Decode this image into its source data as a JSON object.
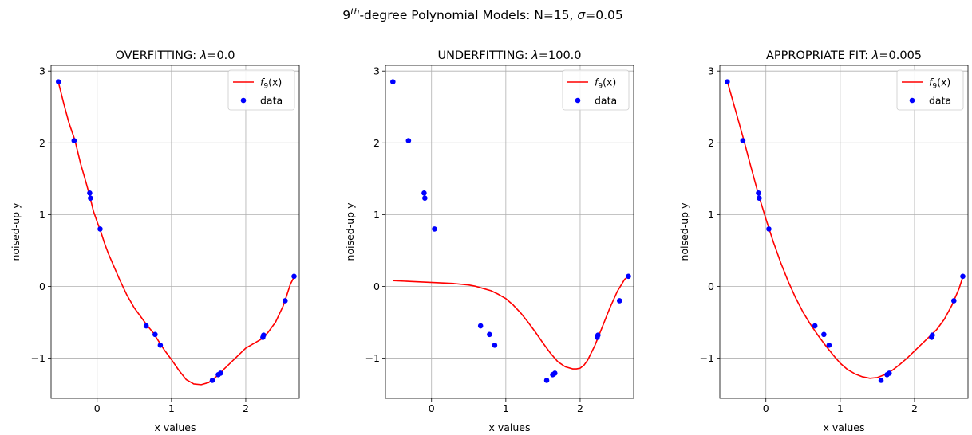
{
  "figure": {
    "suptitle_parts": [
      "9",
      "th",
      "-degree Polynomial Models: N=15, ",
      "σ",
      "=0.05"
    ]
  },
  "chart_data": [
    {
      "type": "scatter",
      "title_parts": [
        "OVERFITTING: ",
        "λ",
        "=0.0"
      ],
      "xlabel": "x values",
      "ylabel": "noised-up y",
      "xlim": [
        -0.62,
        2.72
      ],
      "ylim": [
        -1.56,
        3.08
      ],
      "xticks": [
        0,
        1,
        2
      ],
      "yticks": [
        -1,
        0,
        1,
        2,
        3
      ],
      "grid": true,
      "legend_position": "top-right",
      "series": [
        {
          "name": "f9(x)",
          "legend_parts": [
            "f",
            "9",
            "(x)"
          ],
          "type": "line",
          "color": "#ff0000",
          "x": [
            -0.52,
            -0.45,
            -0.38,
            -0.3,
            -0.22,
            -0.15,
            -0.1,
            -0.05,
            0.0,
            0.05,
            0.1,
            0.15,
            0.2,
            0.3,
            0.4,
            0.5,
            0.6,
            0.67,
            0.75,
            0.8,
            0.85,
            0.9,
            1.0,
            1.1,
            1.2,
            1.3,
            1.4,
            1.5,
            1.55,
            1.6,
            1.65,
            1.7,
            1.8,
            1.9,
            2.0,
            2.1,
            2.2,
            2.25,
            2.3,
            2.4,
            2.5,
            2.55,
            2.6,
            2.65
          ],
          "y": [
            2.84,
            2.55,
            2.28,
            2.04,
            1.7,
            1.45,
            1.26,
            1.05,
            0.9,
            0.76,
            0.6,
            0.46,
            0.34,
            0.1,
            -0.12,
            -0.3,
            -0.44,
            -0.54,
            -0.64,
            -0.72,
            -0.8,
            -0.88,
            -1.02,
            -1.17,
            -1.3,
            -1.36,
            -1.37,
            -1.34,
            -1.3,
            -1.26,
            -1.22,
            -1.16,
            -1.06,
            -0.96,
            -0.86,
            -0.8,
            -0.74,
            -0.7,
            -0.64,
            -0.5,
            -0.28,
            -0.13,
            0.03,
            0.13
          ]
        },
        {
          "name": "data",
          "type": "scatter",
          "color": "#0000ff",
          "x": [
            -0.52,
            -0.31,
            -0.1,
            -0.09,
            0.04,
            0.66,
            0.78,
            0.85,
            1.55,
            1.63,
            1.66,
            2.23,
            2.24,
            2.53,
            2.65
          ],
          "y": [
            2.85,
            2.03,
            1.3,
            1.23,
            0.8,
            -0.55,
            -0.67,
            -0.82,
            -1.31,
            -1.23,
            -1.21,
            -0.71,
            -0.68,
            -0.2,
            0.14
          ]
        }
      ]
    },
    {
      "type": "scatter",
      "title_parts": [
        "UNDERFITTING: ",
        "λ",
        "=100.0"
      ],
      "xlabel": "x values",
      "ylabel": "noised-up y",
      "xlim": [
        -0.62,
        2.72
      ],
      "ylim": [
        -1.56,
        3.08
      ],
      "xticks": [
        0,
        1,
        2
      ],
      "yticks": [
        -1,
        0,
        1,
        2,
        3
      ],
      "grid": true,
      "legend_position": "top-right",
      "series": [
        {
          "name": "f9(x)",
          "legend_parts": [
            "f",
            "9",
            "(x)"
          ],
          "type": "line",
          "color": "#ff0000",
          "x": [
            -0.52,
            -0.3,
            -0.1,
            0.1,
            0.3,
            0.5,
            0.6,
            0.7,
            0.8,
            0.9,
            1.0,
            1.1,
            1.2,
            1.3,
            1.4,
            1.5,
            1.6,
            1.7,
            1.8,
            1.9,
            1.95,
            2.0,
            2.05,
            2.1,
            2.2,
            2.3,
            2.4,
            2.5,
            2.6,
            2.65
          ],
          "y": [
            0.08,
            0.07,
            0.06,
            0.05,
            0.04,
            0.02,
            0.0,
            -0.03,
            -0.06,
            -0.11,
            -0.17,
            -0.26,
            -0.37,
            -0.5,
            -0.64,
            -0.79,
            -0.93,
            -1.05,
            -1.12,
            -1.15,
            -1.15,
            -1.14,
            -1.1,
            -1.03,
            -0.82,
            -0.56,
            -0.3,
            -0.07,
            0.1,
            0.14
          ]
        },
        {
          "name": "data",
          "type": "scatter",
          "color": "#0000ff",
          "x": [
            -0.52,
            -0.31,
            -0.1,
            -0.09,
            0.04,
            0.66,
            0.78,
            0.85,
            1.55,
            1.63,
            1.66,
            2.23,
            2.24,
            2.53,
            2.65
          ],
          "y": [
            2.85,
            2.03,
            1.3,
            1.23,
            0.8,
            -0.55,
            -0.67,
            -0.82,
            -1.31,
            -1.23,
            -1.21,
            -0.71,
            -0.68,
            -0.2,
            0.14
          ]
        }
      ]
    },
    {
      "type": "scatter",
      "title_parts": [
        "APPROPRIATE FIT: ",
        "λ",
        "=0.005"
      ],
      "xlabel": "x values",
      "ylabel": "noised-up y",
      "xlim": [
        -0.62,
        2.72
      ],
      "ylim": [
        -1.56,
        3.08
      ],
      "xticks": [
        0,
        1,
        2
      ],
      "yticks": [
        -1,
        0,
        1,
        2,
        3
      ],
      "grid": true,
      "legend_position": "top-right",
      "series": [
        {
          "name": "f9(x)",
          "legend_parts": [
            "f",
            "9",
            "(x)"
          ],
          "type": "line",
          "color": "#ff0000",
          "x": [
            -0.52,
            -0.4,
            -0.3,
            -0.2,
            -0.1,
            0.0,
            0.1,
            0.2,
            0.3,
            0.4,
            0.5,
            0.6,
            0.7,
            0.8,
            0.9,
            1.0,
            1.1,
            1.2,
            1.3,
            1.4,
            1.5,
            1.6,
            1.7,
            1.8,
            1.9,
            2.0,
            2.1,
            2.2,
            2.3,
            2.4,
            2.5,
            2.6,
            2.65
          ],
          "y": [
            2.86,
            2.42,
            2.05,
            1.66,
            1.28,
            0.94,
            0.62,
            0.33,
            0.07,
            -0.16,
            -0.36,
            -0.53,
            -0.68,
            -0.82,
            -0.95,
            -1.07,
            -1.16,
            -1.22,
            -1.26,
            -1.28,
            -1.27,
            -1.23,
            -1.17,
            -1.09,
            -1.0,
            -0.9,
            -0.8,
            -0.7,
            -0.6,
            -0.46,
            -0.27,
            -0.03,
            0.13
          ]
        },
        {
          "name": "data",
          "type": "scatter",
          "color": "#0000ff",
          "x": [
            -0.52,
            -0.31,
            -0.1,
            -0.09,
            0.04,
            0.66,
            0.78,
            0.85,
            1.55,
            1.63,
            1.66,
            2.23,
            2.24,
            2.53,
            2.65
          ],
          "y": [
            2.85,
            2.03,
            1.3,
            1.23,
            0.8,
            -0.55,
            -0.67,
            -0.82,
            -1.31,
            -1.23,
            -1.21,
            -0.71,
            -0.68,
            -0.2,
            0.14
          ]
        }
      ]
    }
  ]
}
